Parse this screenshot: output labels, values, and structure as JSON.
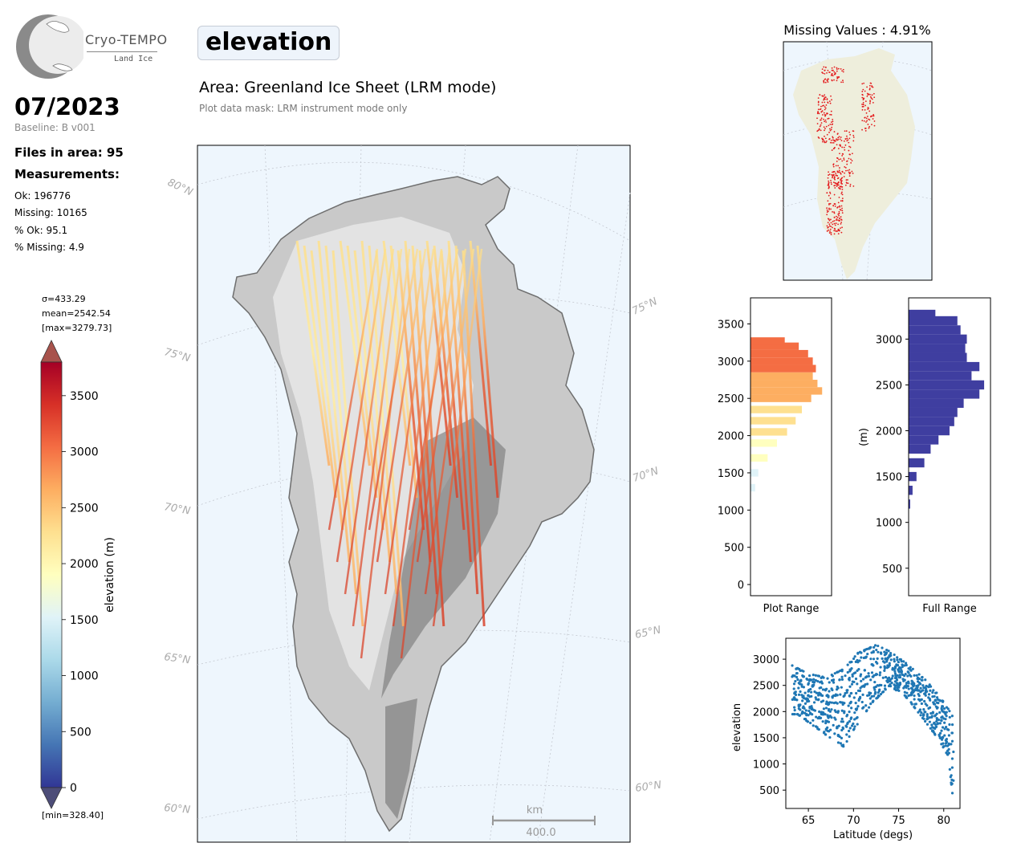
{
  "logo": {
    "name": "Cryo-TEMPO",
    "subtitle": "Land Ice"
  },
  "header": {
    "date": "07/2023",
    "baseline": "Baseline: B v001",
    "files": "Files in area: 95",
    "measurements_heading": "Measurements:",
    "measurements": [
      "Ok: 196776",
      "Missing: 10165",
      "% Ok: 95.1",
      "% Missing: 4.9"
    ]
  },
  "main": {
    "parameter": "elevation",
    "area": "Area: Greenland Ice Sheet (LRM mode)",
    "mask_note": "Plot data mask: LRM instrument mode only"
  },
  "colorbar": {
    "sigma": "σ=433.29",
    "mean": "mean=2542.54",
    "max": "[max=3279.73]",
    "min": "[min=328.40]",
    "label": "elevation (m)",
    "ticks": [
      "0",
      "500",
      "1000",
      "1500",
      "2000",
      "2500",
      "3000",
      "3500"
    ]
  },
  "map": {
    "lat_labels": [
      "80°N",
      "75°N",
      "70°N",
      "65°N",
      "60°N"
    ],
    "lat_labels_right": [
      "75°N",
      "70°N",
      "65°N",
      "60°N"
    ],
    "scale_unit": "km",
    "scale_value": "400.0"
  },
  "missing_map": {
    "title": "Missing Values : 4.91%"
  },
  "colors": {
    "ocean": "#eef6fd",
    "land_light": "#eeeedc",
    "missing": "#e31a1c",
    "full_range_bar": "#3f3ea0",
    "scatter": "#1f77b4"
  },
  "chart_data": [
    {
      "type": "bar",
      "name": "plot-range-histogram",
      "orientation": "horizontal",
      "xlabel": "Plot Range",
      "ylim": [
        -150,
        3850
      ],
      "yticks": [
        "0",
        "500",
        "1000",
        "1500",
        "2000",
        "2500",
        "3000",
        "3500"
      ],
      "bin_centers": [
        1300,
        1500,
        1700,
        1900,
        2050,
        2200,
        2350,
        2500,
        2600,
        2700,
        2800,
        2900,
        3000,
        3100,
        3200,
        3270
      ],
      "counts": [
        0.06,
        0.1,
        0.22,
        0.34,
        0.47,
        0.58,
        0.66,
        0.78,
        0.92,
        0.86,
        0.8,
        0.84,
        0.8,
        0.74,
        0.62,
        0.44
      ],
      "colormap": "RdYlBu_r"
    },
    {
      "type": "bar",
      "name": "full-range-histogram",
      "orientation": "horizontal",
      "xlabel": "Full Range",
      "ylabel": "(m)",
      "ylim": [
        200,
        3450
      ],
      "yticks": [
        "500",
        "1000",
        "1500",
        "2000",
        "2500",
        "3000"
      ],
      "bin_centers": [
        1200,
        1350,
        1500,
        1650,
        1800,
        1900,
        2000,
        2100,
        2200,
        2300,
        2400,
        2500,
        2600,
        2700,
        2800,
        2900,
        3000,
        3100,
        3200,
        3270
      ],
      "counts": [
        0.02,
        0.05,
        0.1,
        0.2,
        0.28,
        0.38,
        0.52,
        0.58,
        0.62,
        0.7,
        0.9,
        0.96,
        0.8,
        0.9,
        0.74,
        0.72,
        0.74,
        0.66,
        0.62,
        0.34
      ]
    },
    {
      "type": "scatter",
      "name": "elevation-vs-latitude",
      "xlabel": "Latitude (degs)",
      "ylabel": "elevation",
      "xlim": [
        62.5,
        81.8
      ],
      "ylim": [
        150,
        3400
      ],
      "xticks": [
        "65",
        "70",
        "75",
        "80"
      ],
      "yticks": [
        "500",
        "1000",
        "1500",
        "2000",
        "2500",
        "3000"
      ],
      "envelope_upper": [
        [
          63.2,
          2880
        ],
        [
          65,
          2720
        ],
        [
          67,
          2650
        ],
        [
          69,
          2820
        ],
        [
          70.5,
          3120
        ],
        [
          72.5,
          3270
        ],
        [
          74,
          3150
        ],
        [
          76,
          2900
        ],
        [
          78,
          2600
        ],
        [
          79.5,
          2300
        ],
        [
          80.5,
          2050
        ],
        [
          81,
          1900
        ]
      ],
      "envelope_lower": [
        [
          63.8,
          1950
        ],
        [
          65,
          1800
        ],
        [
          67,
          1550
        ],
        [
          69,
          1320
        ],
        [
          70,
          1650
        ],
        [
          72,
          2150
        ],
        [
          74,
          2500
        ],
        [
          76,
          2250
        ],
        [
          78,
          1800
        ],
        [
          79.5,
          1450
        ],
        [
          80.5,
          1150
        ],
        [
          81,
          350
        ]
      ]
    }
  ]
}
